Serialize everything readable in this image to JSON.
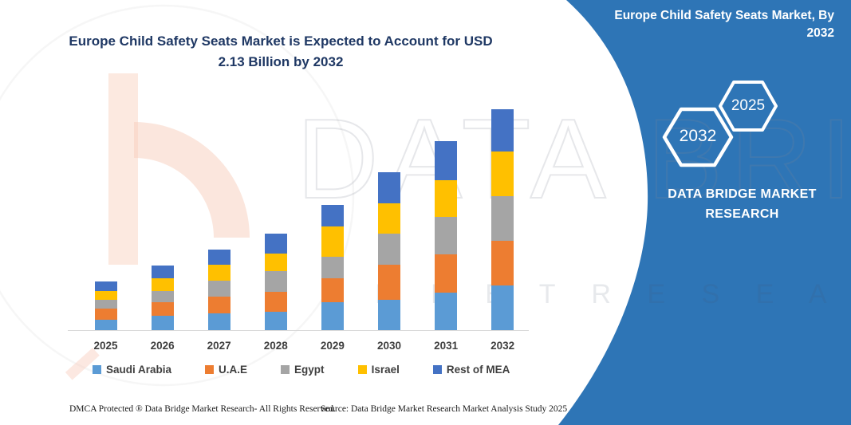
{
  "header": {
    "title_line1": "Europe Child Safety Seats Market is Expected to Account for USD",
    "title_line2": "2.13 Billion by 2032",
    "title_color": "#1F3864"
  },
  "side_panel": {
    "background_color": "#2E75B6",
    "title": "Europe Child Safety Seats Market, By 2032",
    "hexagon_badges": [
      {
        "label": "2032"
      },
      {
        "label": "2025"
      }
    ],
    "brand_name": "DATA BRIDGE MARKET RESEARCH"
  },
  "watermark": {
    "brand_text": "DATA BRIDGE",
    "tagline_text": "M A R K E T  R E S E A R C H"
  },
  "chart_data": {
    "type": "bar",
    "stacked": true,
    "title": "Europe Child Safety Seats Market is Expected to Account for USD 2.13 Billion by 2032",
    "unit": "USD Billion",
    "categories": [
      "2025",
      "2026",
      "2027",
      "2028",
      "2029",
      "2030",
      "2031",
      "2032"
    ],
    "series": [
      {
        "name": "Saudi Arabia",
        "color": "#5B9BD5",
        "values": [
          0.1,
          0.14,
          0.16,
          0.18,
          0.27,
          0.29,
          0.36,
          0.43
        ]
      },
      {
        "name": "U.A.E",
        "color": "#ED7D31",
        "values": [
          0.11,
          0.13,
          0.16,
          0.19,
          0.23,
          0.34,
          0.37,
          0.43
        ]
      },
      {
        "name": "Egypt",
        "color": "#A5A5A5",
        "values": [
          0.08,
          0.11,
          0.16,
          0.2,
          0.21,
          0.3,
          0.36,
          0.43
        ]
      },
      {
        "name": "Israel",
        "color": "#FFC000",
        "values": [
          0.09,
          0.12,
          0.15,
          0.17,
          0.29,
          0.29,
          0.36,
          0.43
        ]
      },
      {
        "name": "Rest of MEA",
        "color": "#4472C4",
        "values": [
          0.09,
          0.12,
          0.15,
          0.19,
          0.21,
          0.3,
          0.37,
          0.41
        ]
      }
    ],
    "totals_estimated": [
      0.47,
      0.62,
      0.78,
      0.93,
      1.21,
      1.52,
      1.82,
      2.13
    ],
    "ylim": [
      0,
      2.2
    ],
    "grid": false,
    "value_axis_visible": false,
    "legend_position": "bottom"
  },
  "footer": {
    "dmca_text": "DMCA Protected ® Data Bridge Market Research-  All Rights Reserved.",
    "source_text": "Source: Data Bridge Market Research  Market Analysis Study 2025"
  }
}
